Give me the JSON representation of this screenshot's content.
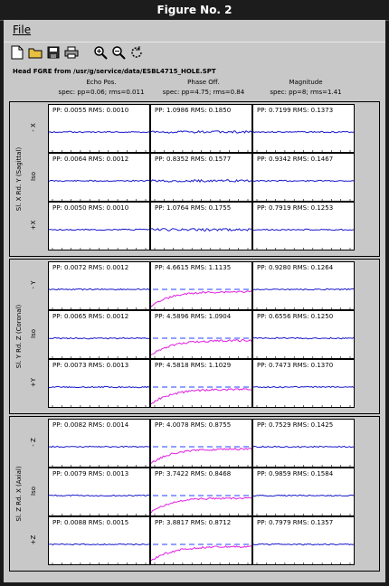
{
  "window": {
    "title": "Figure No. 2"
  },
  "menu": {
    "file_label": "File"
  },
  "toolbar": [
    {
      "name": "new-file-icon"
    },
    {
      "name": "open-folder-icon"
    },
    {
      "name": "save-icon"
    },
    {
      "name": "print-icon"
    },
    {
      "name": "zoom-in-icon"
    },
    {
      "name": "zoom-out-icon"
    },
    {
      "name": "rotate-icon"
    }
  ],
  "figure": {
    "header": "Head FGRE from /usr/g/service/data/ESBL4715_HOLE.SPT",
    "columns": [
      {
        "title": "Echo Pos.",
        "spec": "spec: pp=0.06; rms=0.011"
      },
      {
        "title": "Phase Off.",
        "spec": "spec: pp=4.75; rms=0.84"
      },
      {
        "title": "Magnitude",
        "spec": "spec: pp=8; rms=1.41"
      }
    ],
    "groups": [
      {
        "label": "Sl. X Rd. Y (Sagittal)",
        "rows": [
          "- X",
          "Iso",
          "+X"
        ],
        "cells": [
          [
            "PP: 0.0055 RMS: 0.0010",
            "PP: 1.0986 RMS: 0.1850",
            "PP: 0.7199 RMS: 0.1373"
          ],
          [
            "PP: 0.0064 RMS: 0.0012",
            "PP: 0.8352 RMS: 0.1577",
            "PP: 0.9342 RMS: 0.1467"
          ],
          [
            "PP: 0.0050 RMS: 0.0010",
            "PP: 1.0764 RMS: 0.1755",
            "PP: 0.7919 RMS: 0.1253"
          ]
        ],
        "curve": [
          [
            false,
            false,
            false
          ],
          [
            false,
            false,
            false
          ],
          [
            false,
            false,
            false
          ]
        ]
      },
      {
        "label": "Sl. Y Rd. Z (Coronal)",
        "rows": [
          "- Y",
          "Iso",
          "+Y"
        ],
        "cells": [
          [
            "PP: 0.0072 RMS: 0.0012",
            "PP: 4.6615 RMS: 1.1135",
            "PP: 0.9280 RMS: 0.1264"
          ],
          [
            "PP: 0.0065 RMS: 0.0012",
            "PP: 4.5896 RMS: 1.0904",
            "PP: 0.6556 RMS: 0.1250"
          ],
          [
            "PP: 0.0073 RMS: 0.0013",
            "PP: 4.5818 RMS: 1.1029",
            "PP: 0.7473 RMS: 0.1370"
          ]
        ],
        "curve": [
          [
            false,
            true,
            false
          ],
          [
            false,
            true,
            false
          ],
          [
            false,
            true,
            false
          ]
        ]
      },
      {
        "label": "Sl. Z Rd. X (Axial)",
        "rows": [
          "- Z",
          "Iso",
          "+Z"
        ],
        "cells": [
          [
            "PP: 0.0082 RMS: 0.0014",
            "PP: 4.0078 RMS: 0.8755",
            "PP: 0.7529 RMS: 0.1425"
          ],
          [
            "PP: 0.0079 RMS: 0.0013",
            "PP: 3.7422 RMS: 0.8468",
            "PP: 0.9859 RMS: 0.1584"
          ],
          [
            "PP: 0.0088 RMS: 0.0015",
            "PP: 3.8817 RMS: 0.8712",
            "PP: 0.7979 RMS: 0.1357"
          ]
        ],
        "curve": [
          [
            false,
            true,
            false
          ],
          [
            false,
            true,
            false
          ],
          [
            false,
            true,
            false
          ]
        ]
      }
    ]
  },
  "colors": {
    "trace": "#1a1acc",
    "curve": "#e020e0",
    "spec_line": "#2040ff",
    "background": "#c8c8c8"
  }
}
